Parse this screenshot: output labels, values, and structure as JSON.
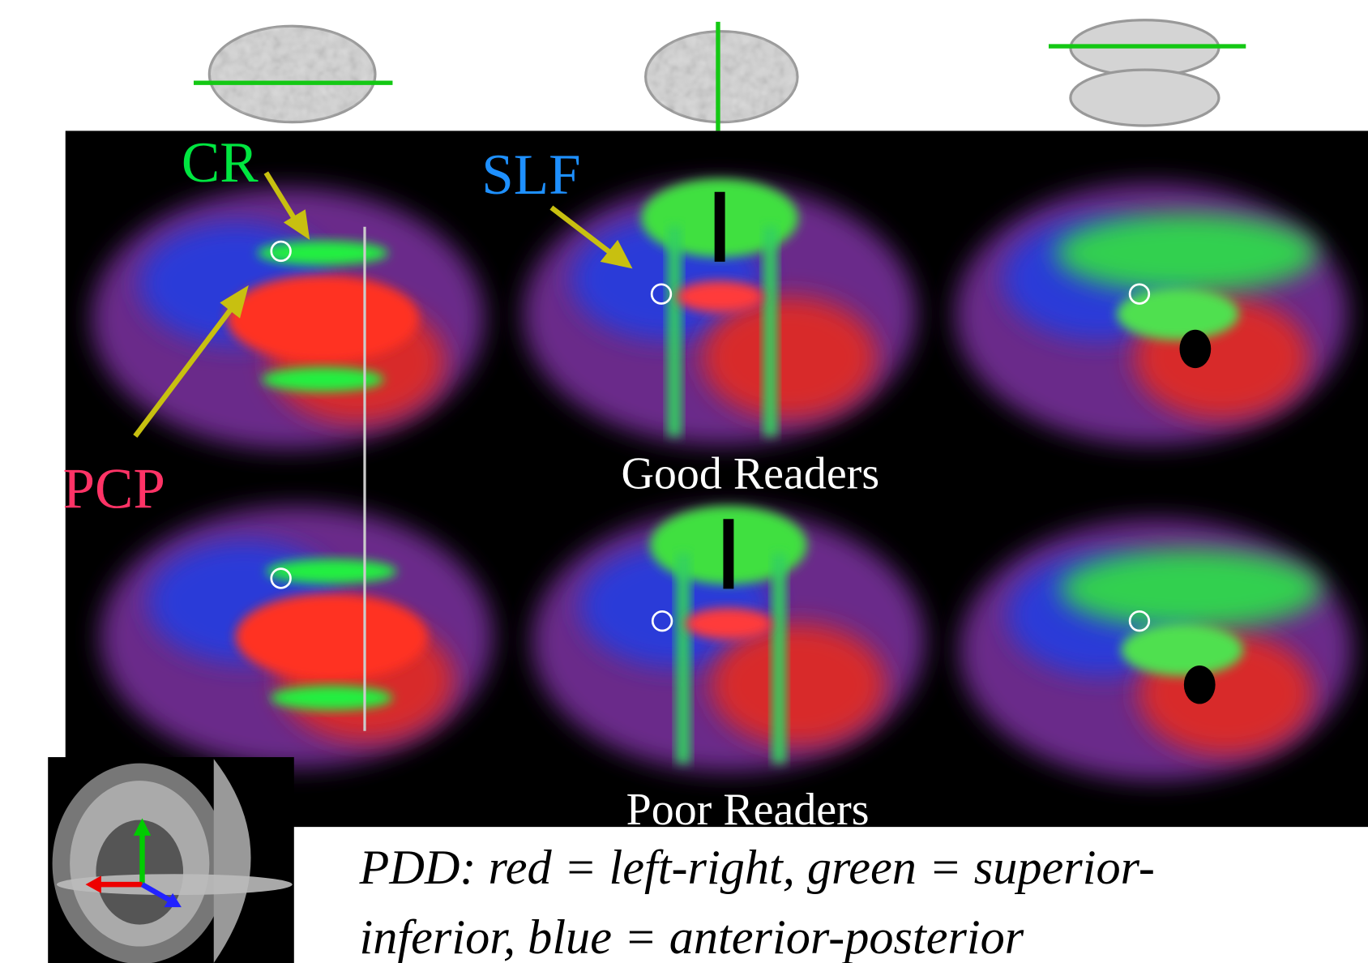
{
  "labels": {
    "cr": "CR",
    "slf": "SLF",
    "pcp": "PCP"
  },
  "groups": [
    "Good Readers",
    "Poor Readers"
  ],
  "caption": {
    "lines": [
      "PDD: red = left-right, green = superior-",
      "inferior, blue = anterior-posterior"
    ]
  }
}
